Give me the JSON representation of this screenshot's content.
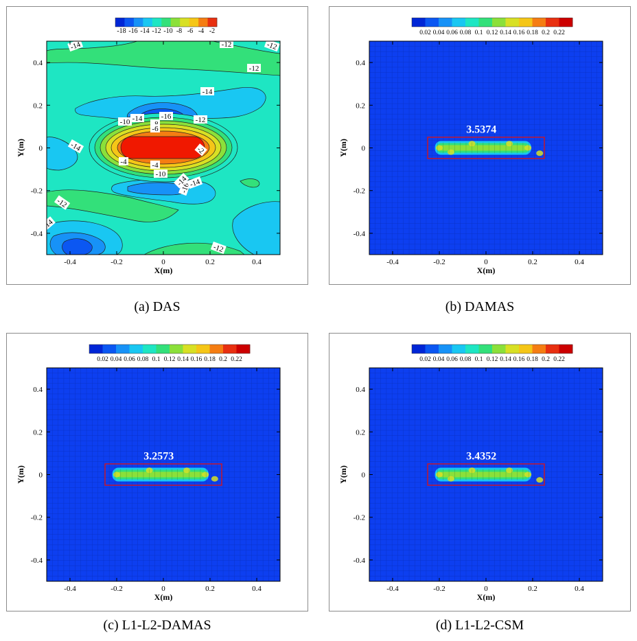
{
  "panels": [
    {
      "caption": "(a)  DAS",
      "colorbar": {
        "labels": [
          "-18",
          "-16",
          "-14",
          "-12",
          "-10",
          "-8",
          "-6",
          "-4",
          "-2"
        ],
        "colors": [
          "#0026d6",
          "#0b57f2",
          "#1792f7",
          "#19c7f2",
          "#1ee6c3",
          "#33e07a",
          "#8be03a",
          "#d8e024",
          "#f5c617",
          "#f57d12",
          "#e83010"
        ]
      },
      "xlabel": "X(m)",
      "ylabel": "Y(m)",
      "xticks": [
        "-0.4",
        "-0.2",
        "0",
        "0.2",
        "0.4"
      ],
      "yticks": [
        "0.4",
        "0.2",
        "0",
        "-0.2",
        "-0.4"
      ],
      "contour_labels": [
        "-14",
        "-12",
        "-12",
        "-12",
        "-14",
        "-16",
        "-14",
        "-10",
        "-8",
        "-6",
        "-12",
        "-14",
        "-2",
        "-4",
        "-4",
        "-10",
        "-16",
        "-14",
        "-14",
        "-12",
        "-14",
        "-12"
      ]
    },
    {
      "caption": "(b)  DAMAS",
      "colorbar": {
        "labels": [
          "0.02",
          "0.04",
          "0.06",
          "0.08",
          "0.1",
          "0.12",
          "0.14",
          "0.16",
          "0.18",
          "0.2",
          "0.22"
        ],
        "colors": [
          "#0026d6",
          "#0b57f2",
          "#1792f7",
          "#19c7f2",
          "#1ee6c3",
          "#33e07a",
          "#8be03a",
          "#d8e024",
          "#f5c617",
          "#f57d12",
          "#e83010",
          "#cc0000"
        ]
      },
      "xlabel": "X(m)",
      "ylabel": "Y(m)",
      "xticks": [
        "-0.4",
        "-0.2",
        "0",
        "0.2",
        "0.4"
      ],
      "yticks": [
        "0.4",
        "0.2",
        "0",
        "-0.2",
        "-0.4"
      ],
      "annotation": "3.5374"
    },
    {
      "caption": "(c)  L1-L2-DAMAS",
      "colorbar": {
        "labels": [
          "0.02",
          "0.04",
          "0.06",
          "0.08",
          "0.1",
          "0.12",
          "0.14",
          "0.16",
          "0.18",
          "0.2",
          "0.22"
        ],
        "colors": [
          "#0026d6",
          "#0b57f2",
          "#1792f7",
          "#19c7f2",
          "#1ee6c3",
          "#33e07a",
          "#8be03a",
          "#d8e024",
          "#f5c617",
          "#f57d12",
          "#e83010",
          "#cc0000"
        ]
      },
      "xlabel": "X(m)",
      "ylabel": "Y(m)",
      "xticks": [
        "-0.4",
        "-0.2",
        "0",
        "0.2",
        "0.4"
      ],
      "yticks": [
        "0.4",
        "0.2",
        "0",
        "-0.2",
        "-0.4"
      ],
      "annotation": "3.2573"
    },
    {
      "caption": "(d)  L1-L2-CSM",
      "colorbar": {
        "labels": [
          "0.02",
          "0.04",
          "0.06",
          "0.08",
          "0.1",
          "0.12",
          "0.14",
          "0.16",
          "0.18",
          "0.2",
          "0.22"
        ],
        "colors": [
          "#0026d6",
          "#0b57f2",
          "#1792f7",
          "#19c7f2",
          "#1ee6c3",
          "#33e07a",
          "#8be03a",
          "#d8e024",
          "#f5c617",
          "#f57d12",
          "#e83010",
          "#cc0000"
        ]
      },
      "xlabel": "X(m)",
      "ylabel": "Y(m)",
      "xticks": [
        "-0.4",
        "-0.2",
        "0",
        "0.2",
        "0.4"
      ],
      "yticks": [
        "0.4",
        "0.2",
        "0",
        "-0.2",
        "-0.4"
      ],
      "annotation": "3.4352"
    }
  ],
  "chart_data": [
    {
      "type": "heatmap",
      "title": "",
      "subtitle": "(a) DAS",
      "xlabel": "X(m)",
      "ylabel": "Y(m)",
      "xlim": [
        -0.5,
        0.5
      ],
      "ylim": [
        -0.5,
        0.5
      ],
      "colorbar_range": [
        -18,
        -2
      ],
      "contour_levels": [
        -18,
        -16,
        -14,
        -12,
        -10,
        -8,
        -6,
        -4,
        -2
      ],
      "peak": {
        "x": 0,
        "y": 0,
        "value": -2
      }
    },
    {
      "type": "heatmap",
      "title": "",
      "subtitle": "(b) DAMAS",
      "xlabel": "X(m)",
      "ylabel": "Y(m)",
      "xlim": [
        -0.5,
        0.5
      ],
      "ylim": [
        -0.5,
        0.5
      ],
      "colorbar_range": [
        0.02,
        0.22
      ],
      "highlight_box": {
        "x": [
          -0.25,
          0.25
        ],
        "y": [
          -0.05,
          0.05
        ]
      },
      "annotation_value": 3.5374,
      "sources": [
        {
          "x": -0.2,
          "y": 0
        },
        {
          "x": -0.15,
          "y": -0.02
        },
        {
          "x": -0.06,
          "y": 0.02
        },
        {
          "x": 0.1,
          "y": 0.02
        },
        {
          "x": 0.18,
          "y": 0
        },
        {
          "x": 0.23,
          "y": -0.025
        }
      ]
    },
    {
      "type": "heatmap",
      "title": "",
      "subtitle": "(c) L1-L2-DAMAS",
      "xlabel": "X(m)",
      "ylabel": "Y(m)",
      "xlim": [
        -0.5,
        0.5
      ],
      "ylim": [
        -0.5,
        0.5
      ],
      "colorbar_range": [
        0.02,
        0.22
      ],
      "highlight_box": {
        "x": [
          -0.25,
          0.25
        ],
        "y": [
          -0.05,
          0.05
        ]
      },
      "annotation_value": 3.2573,
      "sources": [
        {
          "x": -0.2,
          "y": 0
        },
        {
          "x": -0.06,
          "y": 0.02
        },
        {
          "x": 0.1,
          "y": 0.02
        },
        {
          "x": 0.18,
          "y": 0
        },
        {
          "x": 0.22,
          "y": -0.02
        }
      ]
    },
    {
      "type": "heatmap",
      "title": "",
      "subtitle": "(d) L1-L2-CSM",
      "xlabel": "X(m)",
      "ylabel": "Y(m)",
      "xlim": [
        -0.5,
        0.5
      ],
      "ylim": [
        -0.5,
        0.5
      ],
      "colorbar_range": [
        0.02,
        0.22
      ],
      "highlight_box": {
        "x": [
          -0.25,
          0.25
        ],
        "y": [
          -0.05,
          0.05
        ]
      },
      "annotation_value": 3.4352,
      "sources": [
        {
          "x": -0.2,
          "y": 0
        },
        {
          "x": -0.15,
          "y": -0.02
        },
        {
          "x": -0.06,
          "y": 0.02
        },
        {
          "x": 0.1,
          "y": 0.02
        },
        {
          "x": 0.18,
          "y": 0
        },
        {
          "x": 0.23,
          "y": -0.025
        }
      ]
    }
  ]
}
